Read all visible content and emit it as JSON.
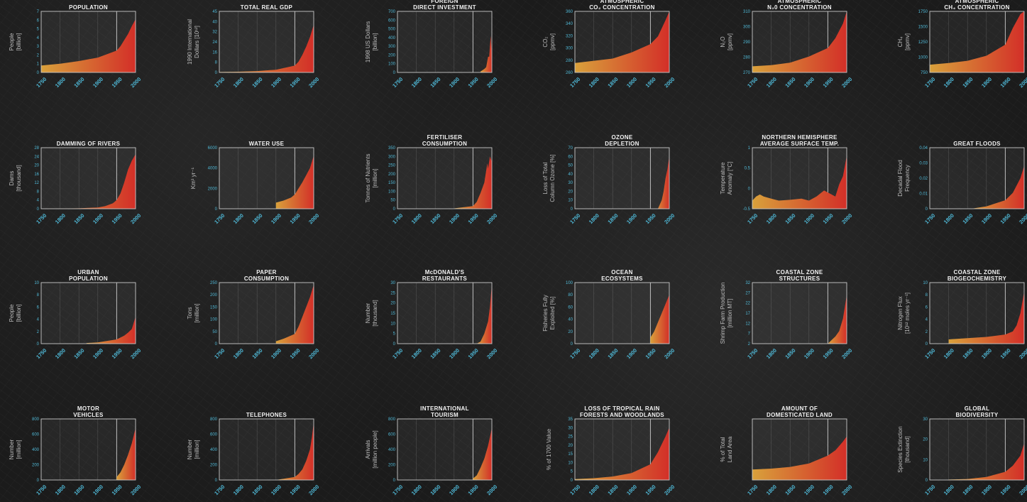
{
  "colors": {
    "background": "#1b1b1b",
    "accent_start": "#d9a13b",
    "accent_end": "#d32f28",
    "frame": "#c9c9c9",
    "tick": "#4fb8d6",
    "title": "#f2f2f2",
    "label": "#bdbdbd"
  },
  "chart_data": [
    {
      "type": "area",
      "title": [
        "POPULATION"
      ],
      "ylabel": [
        "People",
        "[billion]"
      ],
      "yticks": [
        "0",
        "1",
        "2",
        "3",
        "4",
        "5",
        "6",
        "7"
      ],
      "ylim": [
        0,
        7
      ],
      "xticks": [
        "1750",
        "1800",
        "1850",
        "1900",
        "1950",
        "2000"
      ],
      "xlim": [
        1750,
        2000
      ],
      "x": [
        1750,
        1800,
        1850,
        1900,
        1950,
        1960,
        1970,
        1980,
        1990,
        2000
      ],
      "y": [
        0.8,
        1.0,
        1.3,
        1.7,
        2.5,
        3.0,
        3.7,
        4.4,
        5.3,
        6.1
      ]
    },
    {
      "type": "area",
      "title": [
        "TOTAL REAL GDP"
      ],
      "ylabel": [
        "1990 International",
        "Dollars [10¹²]"
      ],
      "yticks": [
        "0",
        "8",
        "16",
        "24",
        "32",
        "40",
        "45"
      ],
      "ylim": [
        0,
        45
      ],
      "xticks": [
        "1750",
        "1800",
        "1850",
        "1900",
        "1950",
        "2000"
      ],
      "xlim": [
        1750,
        2000
      ],
      "x": [
        1750,
        1800,
        1850,
        1900,
        1950,
        1960,
        1970,
        1980,
        1990,
        2000
      ],
      "y": [
        0.3,
        0.5,
        1,
        2,
        5,
        8,
        13,
        19,
        26,
        35
      ]
    },
    {
      "type": "area",
      "title": [
        "FOREIGN",
        "DIRECT INVESTMENT"
      ],
      "ylabel": [
        "1998 US Dollars",
        "[billion]"
      ],
      "yticks": [
        "0",
        "100",
        "200",
        "300",
        "400",
        "500",
        "600",
        "700"
      ],
      "ylim": [
        0,
        700
      ],
      "xticks": [
        "1750",
        "1800",
        "1850",
        "1900",
        "1950",
        "2000"
      ],
      "xlim": [
        1750,
        2000
      ],
      "x": [
        1970,
        1980,
        1985,
        1990,
        1993,
        1995,
        1997,
        2000
      ],
      "y": [
        10,
        40,
        60,
        180,
        180,
        300,
        420,
        200
      ]
    },
    {
      "type": "area",
      "title": [
        "ATMOSPHERIC",
        "CO₂ CONCENTRATION"
      ],
      "ylabel": [
        "CO₂",
        "[ppmv]"
      ],
      "yticks": [
        "260",
        "280",
        "300",
        "320",
        "340",
        "360"
      ],
      "ylim": [
        260,
        370
      ],
      "xticks": [
        "1750",
        "1800",
        "1850",
        "1900",
        "1950",
        "2000"
      ],
      "xlim": [
        1750,
        2000
      ],
      "x": [
        1750,
        1800,
        1850,
        1900,
        1950,
        1970,
        1990,
        2000
      ],
      "y": [
        277,
        281,
        285,
        296,
        311,
        325,
        354,
        370
      ]
    },
    {
      "type": "area",
      "title": [
        "ATMOSPHERIC",
        "N₂0 CONCENTRATION"
      ],
      "ylabel": [
        "N₂O",
        "[ppmv]"
      ],
      "yticks": [
        "270",
        "280",
        "290",
        "300",
        "310"
      ],
      "ylim": [
        265,
        315
      ],
      "xticks": [
        "1750",
        "1800",
        "1850",
        "1900",
        "1950",
        "2000"
      ],
      "xlim": [
        1750,
        2000
      ],
      "x": [
        1750,
        1800,
        1850,
        1900,
        1950,
        1970,
        1990,
        2000
      ],
      "y": [
        270,
        271,
        273,
        278,
        285,
        293,
        305,
        315
      ]
    },
    {
      "type": "area",
      "title": [
        "ATMOSPHERIC",
        "CH₄ CONCENTRATION"
      ],
      "ylabel": [
        "CH₄",
        "[ppmv]"
      ],
      "yticks": [
        "750",
        "1000",
        "1250",
        "1500",
        "1750"
      ],
      "ylim": [
        650,
        1750
      ],
      "xticks": [
        "1750",
        "1800",
        "1850",
        "1900",
        "1950",
        "2000"
      ],
      "xlim": [
        1750,
        2000
      ],
      "x": [
        1750,
        1800,
        1850,
        1900,
        1950,
        1970,
        1990,
        2000
      ],
      "y": [
        790,
        820,
        860,
        950,
        1150,
        1450,
        1700,
        1750
      ]
    },
    {
      "type": "area",
      "title": [
        "DAMMING OF RIVERS"
      ],
      "ylabel": [
        "Dams",
        "[thousand]"
      ],
      "yticks": [
        "0",
        "4",
        "8",
        "12",
        "16",
        "20",
        "24",
        "28"
      ],
      "ylim": [
        0,
        28
      ],
      "xticks": [
        "1750",
        "1800",
        "1850",
        "1900",
        "1950",
        "2000"
      ],
      "xlim": [
        1750,
        2000
      ],
      "x": [
        1750,
        1850,
        1900,
        1920,
        1940,
        1950,
        1960,
        1970,
        1980,
        1990,
        2000
      ],
      "y": [
        0,
        0.2,
        0.6,
        1.2,
        2.5,
        4,
        7,
        12,
        18,
        22,
        25
      ]
    },
    {
      "type": "area",
      "title": [
        "WATER USE"
      ],
      "ylabel": [
        "Km³ yr⁻¹"
      ],
      "yticks": [
        "0",
        "2000",
        "4000",
        "6000"
      ],
      "ylim": [
        0,
        6000
      ],
      "xticks": [
        "1750",
        "1800",
        "1850",
        "1900",
        "1950",
        "2000"
      ],
      "xlim": [
        1750,
        2000
      ],
      "x": [
        1900,
        1920,
        1940,
        1950,
        1960,
        1970,
        1980,
        1990,
        2000
      ],
      "y": [
        600,
        800,
        1100,
        1400,
        2000,
        2600,
        3300,
        4000,
        5200
      ]
    },
    {
      "type": "area",
      "title": [
        "FERTILISER",
        "CONSUMPTION"
      ],
      "ylabel": [
        "Tonnes of Nutrients",
        "[million]"
      ],
      "yticks": [
        "0",
        "50",
        "100",
        "150",
        "200",
        "250",
        "300",
        "350"
      ],
      "ylim": [
        0,
        350
      ],
      "xticks": [
        "1750",
        "1800",
        "1850",
        "1900",
        "1950",
        "2000"
      ],
      "xlim": [
        1750,
        2000
      ],
      "x": [
        1900,
        1950,
        1960,
        1970,
        1980,
        1988,
        1990,
        1995,
        2000
      ],
      "y": [
        2,
        15,
        40,
        90,
        150,
        260,
        230,
        300,
        270
      ]
    },
    {
      "type": "area",
      "title": [
        "OZONE",
        "DEPLETION"
      ],
      "ylabel": [
        "Loss of Total",
        "Column Ozone [%]"
      ],
      "yticks": [
        "0",
        "10",
        "20",
        "30",
        "40",
        "50",
        "60",
        "70"
      ],
      "ylim": [
        0,
        70
      ],
      "xticks": [
        "1750",
        "1800",
        "1850",
        "1900",
        "1950",
        "2000"
      ],
      "xlim": [
        1750,
        2000
      ],
      "x": [
        1960,
        1970,
        1980,
        1985,
        1990,
        1995,
        2000
      ],
      "y": [
        0,
        0,
        10,
        20,
        35,
        45,
        60
      ]
    },
    {
      "type": "area",
      "title": [
        "NORTHERN HEMISPHERE",
        "AVERAGE SURFACE TEMP."
      ],
      "ylabel": [
        "Temperature",
        "Anomaly [°C]"
      ],
      "yticks": [
        "-0.5",
        "0",
        "0.5",
        "1"
      ],
      "ylim": [
        -0.5,
        1
      ],
      "xticks": [
        "1750",
        "1800",
        "1850",
        "1900",
        "1950",
        "2000"
      ],
      "xlim": [
        1750,
        2000
      ],
      "x": [
        1750,
        1760,
        1770,
        1780,
        1800,
        1820,
        1850,
        1880,
        1900,
        1920,
        1940,
        1950,
        1960,
        1970,
        1980,
        1990,
        2000
      ],
      "y": [
        -0.3,
        -0.2,
        -0.15,
        -0.2,
        -0.25,
        -0.3,
        -0.28,
        -0.25,
        -0.3,
        -0.2,
        -0.05,
        -0.1,
        -0.15,
        -0.2,
        0.1,
        0.3,
        0.8
      ]
    },
    {
      "type": "area",
      "title": [
        "GREAT FLOODS"
      ],
      "ylabel": [
        "Decadal Flood",
        "Frequency"
      ],
      "yticks": [
        "0",
        "0.01",
        "0.02",
        "0.03",
        "0.04"
      ],
      "ylim": [
        -0.01,
        0.04
      ],
      "xticks": [
        "1750",
        "1800",
        "1850",
        "1900",
        "1950",
        "2000"
      ],
      "xlim": [
        1750,
        2000
      ],
      "x": [
        1860,
        1900,
        1950,
        1970,
        1990,
        2000
      ],
      "y": [
        -0.01,
        -0.008,
        -0.003,
        0.003,
        0.015,
        0.025
      ]
    },
    {
      "type": "area",
      "title": [
        "URBAN",
        "POPULATION"
      ],
      "ylabel": [
        "People",
        "[billion]"
      ],
      "yticks": [
        "0",
        "2",
        "4",
        "6",
        "8",
        "10"
      ],
      "ylim": [
        0,
        10
      ],
      "xticks": [
        "1750",
        "1800",
        "1850",
        "1900",
        "1950",
        "2000"
      ],
      "xlim": [
        1750,
        2000
      ],
      "x": [
        1870,
        1900,
        1950,
        1970,
        1980,
        1990,
        2000
      ],
      "y": [
        0.1,
        0.2,
        0.7,
        1.3,
        1.8,
        2.4,
        4.4
      ]
    },
    {
      "type": "area",
      "title": [
        "PAPER",
        "CONSUMPTION"
      ],
      "ylabel": [
        "Tons",
        "[million]"
      ],
      "yticks": [
        "0",
        "50",
        "100",
        "150",
        "200",
        "250"
      ],
      "ylim": [
        0,
        250
      ],
      "xticks": [
        "1750",
        "1800",
        "1850",
        "1900",
        "1950",
        "2000"
      ],
      "xlim": [
        1750,
        2000
      ],
      "x": [
        1900,
        1920,
        1950,
        1960,
        1970,
        1980,
        1990,
        2000
      ],
      "y": [
        10,
        20,
        40,
        70,
        110,
        150,
        190,
        240
      ]
    },
    {
      "type": "area",
      "title": [
        "McDONALD'S",
        "RESTAURANTS"
      ],
      "ylabel": [
        "Number",
        "[thousand]"
      ],
      "yticks": [
        "0",
        "5",
        "10",
        "15",
        "20",
        "25",
        "30"
      ],
      "ylim": [
        0,
        30
      ],
      "xticks": [
        "1750",
        "1800",
        "1850",
        "1900",
        "1950",
        "2000"
      ],
      "xlim": [
        1750,
        2000
      ],
      "x": [
        1960,
        1970,
        1980,
        1990,
        1995,
        2000
      ],
      "y": [
        0,
        1,
        5,
        11,
        18,
        29
      ]
    },
    {
      "type": "area",
      "title": [
        "OCEAN",
        "ECOSYSTEMS"
      ],
      "ylabel": [
        "Fisheries Fully",
        "Exploited [%]"
      ],
      "yticks": [
        "0",
        "20",
        "40",
        "60",
        "80",
        "100"
      ],
      "ylim": [
        0,
        100
      ],
      "xticks": [
        "1750",
        "1800",
        "1850",
        "1900",
        "1950",
        "2000"
      ],
      "xlim": [
        1750,
        2000
      ],
      "x": [
        1950,
        1960,
        1970,
        1980,
        1990,
        2000
      ],
      "y": [
        10,
        20,
        35,
        50,
        65,
        80
      ]
    },
    {
      "type": "area",
      "title": [
        "COASTAL ZONE",
        "STRUCTURES"
      ],
      "ylabel": [
        "Shrimp Farm Production",
        "[million MT]"
      ],
      "yticks": [
        "2",
        "7",
        "12",
        "17",
        "22",
        "27",
        "32"
      ],
      "ylim": [
        0,
        34
      ],
      "xticks": [
        "1750",
        "1800",
        "1850",
        "1900",
        "1950",
        "2000"
      ],
      "xlim": [
        1750,
        2000
      ],
      "x": [
        1950,
        1960,
        1970,
        1980,
        1990,
        2000
      ],
      "y": [
        0,
        2,
        4,
        7,
        14,
        27
      ]
    },
    {
      "type": "area",
      "title": [
        "COASTAL ZONE",
        "BIOGEOCHEMISTRY"
      ],
      "ylabel": [
        "Nitrogen Flux",
        "[10¹² moles yr⁻¹]"
      ],
      "yticks": [
        "0",
        "2",
        "4",
        "6",
        "8",
        "10"
      ],
      "ylim": [
        0,
        10
      ],
      "xticks": [
        "1750",
        "1800",
        "1850",
        "1900",
        "1950",
        "2000"
      ],
      "xlim": [
        1750,
        2000
      ],
      "x": [
        1800,
        1850,
        1900,
        1950,
        1970,
        1980,
        1990,
        2000
      ],
      "y": [
        0.7,
        0.9,
        1.1,
        1.5,
        2,
        3,
        5,
        8.5
      ]
    },
    {
      "type": "area",
      "title": [
        "MOTOR",
        "VEHICLES"
      ],
      "ylabel": [
        "Number",
        "[million]"
      ],
      "yticks": [
        "0",
        "200",
        "400",
        "600",
        "800"
      ],
      "ylim": [
        0,
        800
      ],
      "xticks": [
        "1750",
        "1800",
        "1850",
        "1900",
        "1950",
        "2000"
      ],
      "xlim": [
        1750,
        2000
      ],
      "x": [
        1950,
        1960,
        1970,
        1980,
        1990,
        2000
      ],
      "y": [
        40,
        100,
        200,
        330,
        480,
        680
      ]
    },
    {
      "type": "area",
      "title": [
        "TELEPHONES"
      ],
      "ylabel": [
        "Number",
        "[million]"
      ],
      "yticks": [
        "0",
        "200",
        "400",
        "600",
        "800"
      ],
      "ylim": [
        0,
        800
      ],
      "xticks": [
        "1750",
        "1800",
        "1850",
        "1900",
        "1950",
        "2000"
      ],
      "xlim": [
        1750,
        2000
      ],
      "x": [
        1900,
        1950,
        1960,
        1970,
        1980,
        1990,
        1995,
        2000
      ],
      "y": [
        0,
        40,
        80,
        140,
        250,
        400,
        550,
        750
      ]
    },
    {
      "type": "area",
      "title": [
        "INTERNATIONAL",
        "TOURISM"
      ],
      "ylabel": [
        "Arrivals",
        "[million people]"
      ],
      "yticks": [
        "0",
        "200",
        "400",
        "600",
        "800"
      ],
      "ylim": [
        0,
        800
      ],
      "xticks": [
        "1750",
        "1800",
        "1850",
        "1900",
        "1950",
        "2000"
      ],
      "xlim": [
        1750,
        2000
      ],
      "x": [
        1950,
        1960,
        1970,
        1980,
        1990,
        2000
      ],
      "y": [
        20,
        60,
        160,
        280,
        450,
        680
      ]
    },
    {
      "type": "area",
      "title": [
        "LOSS OF TROPICAL RAIN",
        "FORESTS AND WOODLANDS"
      ],
      "ylabel": [
        "% of 1700 Value"
      ],
      "yticks": [
        "0",
        "5",
        "10",
        "15",
        "20",
        "25",
        "30",
        "35"
      ],
      "ylim": [
        0,
        35
      ],
      "xticks": [
        "1750",
        "1800",
        "1850",
        "1900",
        "1950",
        "2000"
      ],
      "xlim": [
        1750,
        2000
      ],
      "x": [
        1750,
        1800,
        1850,
        1900,
        1950,
        1970,
        1990,
        2000
      ],
      "y": [
        0.5,
        1,
        2,
        4,
        9,
        16,
        25,
        30
      ]
    },
    {
      "type": "area",
      "title": [
        "AMOUNT OF",
        "DOMESTICATED LAND"
      ],
      "ylabel": [
        "% of Total",
        "Land Area"
      ],
      "yticks": [],
      "ylim": [
        0,
        35
      ],
      "xticks": [
        "1750",
        "1800",
        "1850",
        "1900",
        "1950",
        "2000"
      ],
      "xlim": [
        1750,
        2000
      ],
      "x": [
        1750,
        1800,
        1850,
        1900,
        1950,
        1970,
        1990,
        2000
      ],
      "y": [
        6,
        6.5,
        7.5,
        9.5,
        14,
        17,
        22,
        25
      ]
    },
    {
      "type": "area",
      "title": [
        "GLOBAL",
        "BIODIVERSITY"
      ],
      "ylabel": [
        "Species Extinction",
        "[thousand]"
      ],
      "yticks": [
        "0",
        "10",
        "20",
        "30"
      ],
      "ylim": [
        0,
        30
      ],
      "xticks": [
        "1750",
        "1800",
        "1850",
        "1900",
        "1950",
        "2000"
      ],
      "xlim": [
        1750,
        2000
      ],
      "x": [
        1800,
        1850,
        1900,
        1950,
        1970,
        1990,
        2000
      ],
      "y": [
        0.2,
        0.5,
        1.5,
        4,
        7,
        12,
        18
      ]
    }
  ]
}
